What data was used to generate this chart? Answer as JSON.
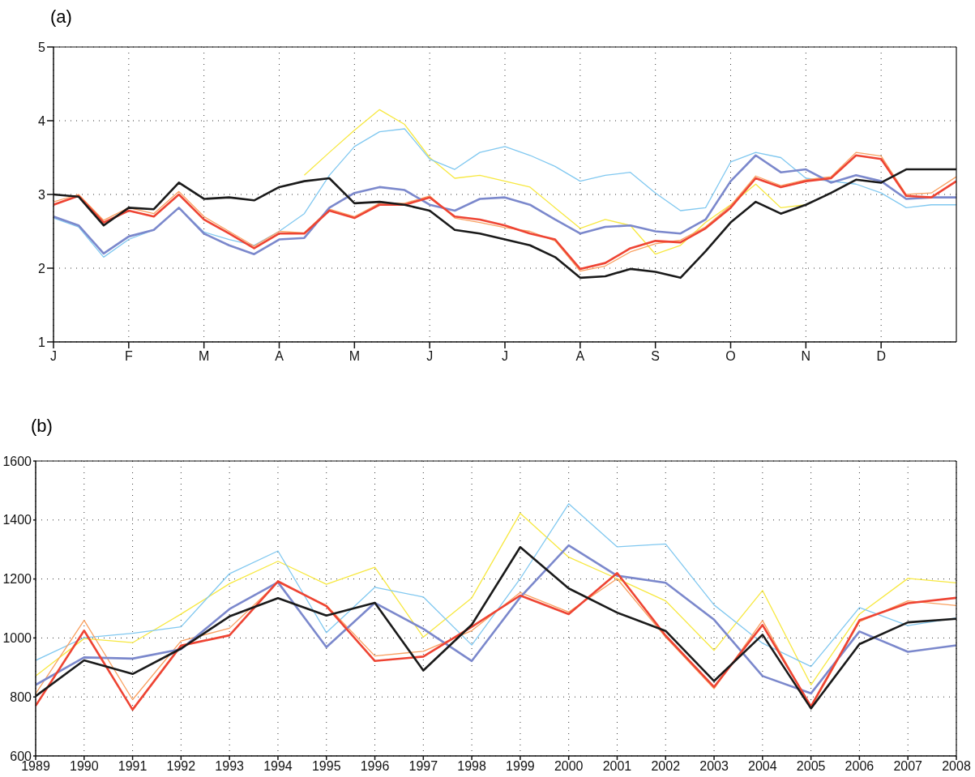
{
  "chart_data": [
    {
      "type": "line",
      "title": "(a)",
      "categories": [
        "J",
        null,
        null,
        "F",
        null,
        null,
        "M",
        null,
        null,
        "A",
        null,
        null,
        "M",
        null,
        null,
        "J",
        null,
        null,
        "J",
        null,
        null,
        "A",
        null,
        null,
        "S",
        null,
        null,
        "O",
        null,
        null,
        "N",
        null,
        null,
        "D",
        null,
        null,
        null
      ],
      "ylim": [
        1,
        5
      ],
      "yticks": [
        1,
        2,
        3,
        4,
        5
      ],
      "grid": true,
      "line_style": "solid",
      "series": [
        {
          "color": "#f7e840",
          "values": [
            null,
            null,
            null,
            null,
            null,
            null,
            null,
            null,
            null,
            null,
            3.26,
            3.57,
            3.87,
            4.15,
            3.95,
            3.5,
            3.22,
            3.26,
            3.18,
            3.1,
            2.82,
            2.54,
            2.66,
            2.58,
            2.19,
            2.31,
            2.62,
            2.86,
            3.14,
            2.82,
            2.86,
            null,
            null,
            null,
            null,
            null,
            null
          ]
        },
        {
          "color": "#80c8f0",
          "values": [
            2.68,
            2.56,
            2.15,
            2.39,
            2.52,
            2.82,
            2.49,
            2.39,
            2.31,
            2.5,
            2.74,
            3.26,
            3.65,
            3.85,
            3.89,
            3.48,
            3.34,
            3.57,
            3.65,
            3.53,
            3.38,
            3.18,
            3.26,
            3.3,
            3.02,
            2.78,
            2.82,
            3.44,
            3.57,
            3.5,
            3.22,
            3.18,
            3.14,
            3.02,
            2.82,
            2.86,
            2.86
          ]
        },
        {
          "color": "#f9a060",
          "values": [
            2.9,
            3.0,
            2.65,
            2.82,
            2.74,
            3.04,
            2.7,
            2.5,
            2.3,
            2.5,
            2.48,
            2.8,
            2.7,
            2.88,
            2.88,
            2.98,
            2.68,
            2.62,
            2.55,
            2.5,
            2.37,
            1.96,
            2.03,
            2.22,
            2.33,
            2.38,
            2.56,
            2.85,
            3.25,
            3.12,
            3.2,
            3.24,
            3.57,
            3.52,
            3.0,
            3.02,
            3.24
          ]
        },
        {
          "color": "#7b88cc",
          "values": [
            2.7,
            2.58,
            2.2,
            2.43,
            2.52,
            2.82,
            2.47,
            2.31,
            2.19,
            2.39,
            2.41,
            2.82,
            3.02,
            3.1,
            3.06,
            2.86,
            2.78,
            2.94,
            2.96,
            2.86,
            2.66,
            2.47,
            2.56,
            2.58,
            2.5,
            2.47,
            2.66,
            3.18,
            3.53,
            3.3,
            3.34,
            3.16,
            3.26,
            3.18,
            2.94,
            2.96,
            2.96
          ]
        },
        {
          "color": "#ee4433",
          "values": [
            2.86,
            2.98,
            2.62,
            2.78,
            2.7,
            3.0,
            2.66,
            2.47,
            2.27,
            2.47,
            2.47,
            2.78,
            2.68,
            2.86,
            2.86,
            2.96,
            2.7,
            2.66,
            2.58,
            2.47,
            2.39,
            1.99,
            2.07,
            2.27,
            2.37,
            2.35,
            2.54,
            2.82,
            3.22,
            3.1,
            3.18,
            3.22,
            3.53,
            3.48,
            2.98,
            2.96,
            3.18
          ]
        },
        {
          "color": "#1a1a1a",
          "values": [
            3.0,
            2.97,
            2.58,
            2.82,
            2.8,
            3.16,
            2.94,
            2.96,
            2.92,
            3.1,
            3.18,
            3.22,
            2.88,
            2.9,
            2.86,
            2.78,
            2.52,
            2.47,
            2.39,
            2.31,
            2.15,
            1.87,
            1.89,
            1.99,
            1.95,
            1.87,
            2.23,
            2.62,
            2.9,
            2.74,
            2.86,
            3.02,
            3.2,
            3.16,
            3.34,
            3.34,
            3.34
          ]
        }
      ]
    },
    {
      "type": "line",
      "title": "(b)",
      "x": [
        1989,
        1990,
        1991,
        1992,
        1993,
        1994,
        1995,
        1996,
        1997,
        1998,
        1999,
        2000,
        2001,
        2002,
        2003,
        2004,
        2005,
        2006,
        2007,
        2008
      ],
      "xlim": [
        1989,
        2008
      ],
      "xticks": [
        1989,
        1990,
        1991,
        1992,
        1993,
        1994,
        1995,
        1996,
        1997,
        1998,
        1999,
        2000,
        2001,
        2002,
        2003,
        2004,
        2005,
        2006,
        2007,
        2008
      ],
      "ylim": [
        600,
        1600
      ],
      "yticks": [
        600,
        800,
        1000,
        1200,
        1400,
        1600
      ],
      "grid": true,
      "line_style": "solid",
      "series": [
        {
          "color": "#f7e840",
          "values": [
            871,
            998,
            984,
            1081,
            1184,
            1260,
            1182,
            1240,
            1003,
            1136,
            1423,
            1274,
            1201,
            1126,
            958,
            1161,
            841,
            1081,
            1202,
            1187
          ]
        },
        {
          "color": "#80c8f0",
          "values": [
            924,
            1001,
            1016,
            1038,
            1218,
            1295,
            1018,
            1172,
            1139,
            976,
            1201,
            1455,
            1309,
            1319,
            1112,
            982,
            903,
            1103,
            1042,
            1068
          ]
        },
        {
          "color": "#f9a060",
          "values": [
            811,
            1060,
            791,
            990,
            1033,
            1189,
            1111,
            939,
            955,
            1025,
            1154,
            1088,
            1201,
            1003,
            828,
            1059,
            763,
            1055,
            1126,
            1110
          ]
        },
        {
          "color": "#7b88cc",
          "values": [
            841,
            934,
            930,
            962,
            1098,
            1189,
            969,
            1119,
            1031,
            922,
            1138,
            1314,
            1211,
            1187,
            1062,
            871,
            812,
            1022,
            953,
            975
          ]
        },
        {
          "color": "#ee4433",
          "values": [
            770,
            1025,
            757,
            974,
            1009,
            1192,
            1108,
            922,
            937,
            1038,
            1144,
            1081,
            1220,
            1008,
            834,
            1044,
            768,
            1060,
            1118,
            1136
          ]
        },
        {
          "color": "#1a1a1a",
          "values": [
            803,
            924,
            878,
            964,
            1073,
            1135,
            1076,
            1119,
            890,
            1045,
            1308,
            1168,
            1086,
            1024,
            854,
            1011,
            761,
            979,
            1053,
            1065
          ]
        }
      ]
    }
  ]
}
